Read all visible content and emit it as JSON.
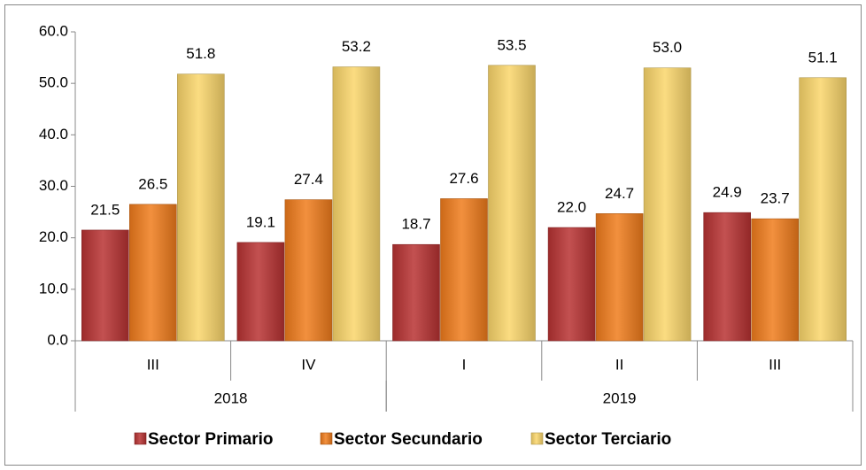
{
  "chart_data": {
    "type": "bar",
    "categories": [
      "III",
      "IV",
      "I",
      "II",
      "III"
    ],
    "category_groups": [
      "2018",
      "2018",
      "2019",
      "2019",
      "2019"
    ],
    "series": [
      {
        "name": "Sector Primario",
        "color": "#b83232",
        "values": [
          21.5,
          19.1,
          18.7,
          22.0,
          24.9
        ],
        "value_labels": [
          "21.5",
          "19.1",
          "18.7",
          "22.0",
          "24.9"
        ]
      },
      {
        "name": "Sector Secundario",
        "color": "#f07c1c",
        "values": [
          26.5,
          27.4,
          27.6,
          24.7,
          23.7
        ],
        "value_labels": [
          "26.5",
          "27.4",
          "27.6",
          "24.7",
          "23.7"
        ]
      },
      {
        "name": "Sector Terciario",
        "color": "#fad66b",
        "values": [
          51.8,
          53.2,
          53.5,
          53.0,
          51.1
        ],
        "value_labels": [
          "51.8",
          "53.2",
          "53.5",
          "53.0",
          "51.1"
        ]
      }
    ],
    "ylim": [
      0,
      60
    ],
    "yticks": [
      {
        "value": 0,
        "label": "0.0"
      },
      {
        "value": 10,
        "label": "10.0"
      },
      {
        "value": 20,
        "label": "20.0"
      },
      {
        "value": 30,
        "label": "30.0"
      },
      {
        "value": 40,
        "label": "40.0"
      },
      {
        "value": 50,
        "label": "50.0"
      },
      {
        "value": 60,
        "label": "60.0"
      }
    ],
    "legend": "bottom"
  }
}
